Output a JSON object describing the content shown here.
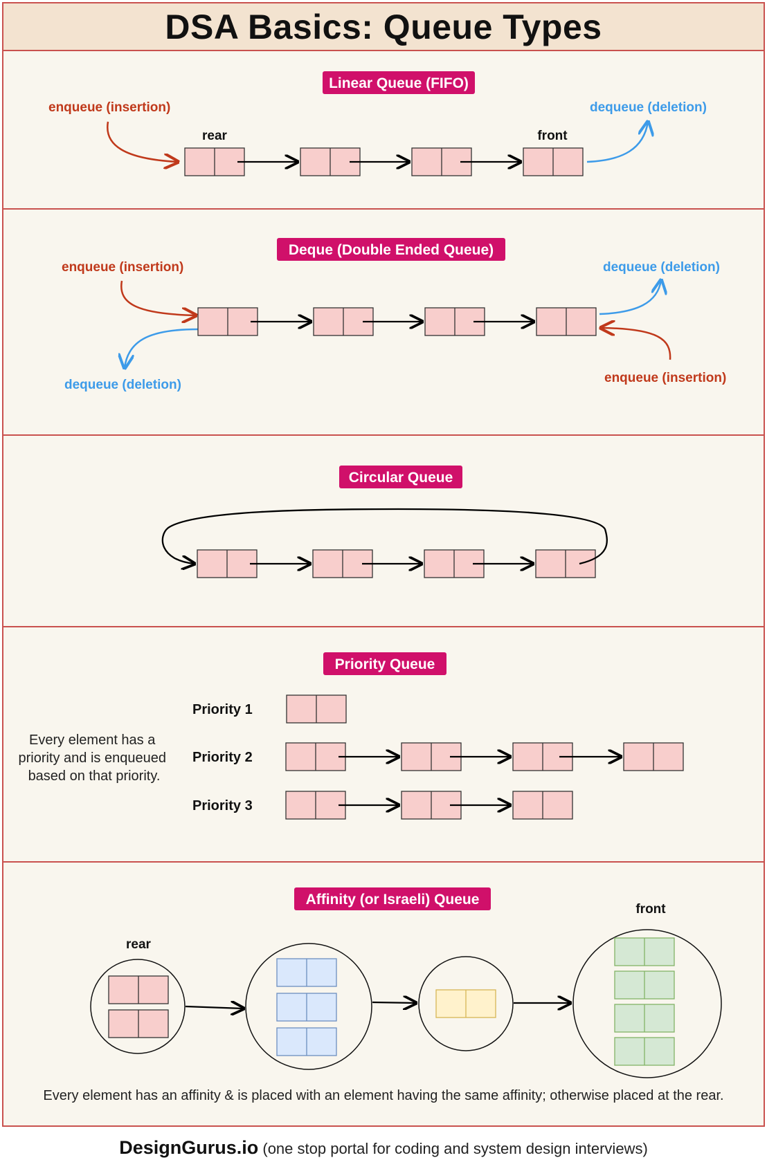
{
  "title": "DSA Basics: Queue Types",
  "colors": {
    "border": "#c9514e",
    "panel": "#f9f6ee",
    "header": "#f3e3d0",
    "badge": "#d0106a",
    "enqueue": "#c0391b",
    "dequeue": "#3d9be9",
    "node_pink": "#f8cecc",
    "node_blue": "#dae8fc",
    "node_yellow": "#fff2cc",
    "node_green": "#d5e8d4"
  },
  "sections": {
    "linear": {
      "title": "Linear Queue (FIFO)",
      "enqueue_label": "enqueue (insertion)",
      "dequeue_label": "dequeue (deletion)",
      "rear_label": "rear",
      "front_label": "front"
    },
    "deque": {
      "title": "Deque (Double Ended Queue)",
      "enqueue_left": "enqueue (insertion)",
      "dequeue_right": "dequeue (deletion)",
      "dequeue_left": "dequeue (deletion)",
      "enqueue_right": "enqueue (insertion)"
    },
    "circular": {
      "title": "Circular Queue"
    },
    "priority": {
      "title": "Priority Queue",
      "description": [
        "Every element has a",
        "priority and is enqueued",
        "based on that priority."
      ],
      "rows": [
        {
          "label": "Priority 1",
          "nodes": 1
        },
        {
          "label": "Priority 2",
          "nodes": 4
        },
        {
          "label": "Priority 3",
          "nodes": 3
        }
      ]
    },
    "affinity": {
      "title": "Affinity (or Israeli) Queue",
      "rear_label": "rear",
      "front_label": "front",
      "description": "Every element has an affinity & is placed with an element having the same affinity; otherwise placed at the rear.",
      "groups": [
        {
          "color": "pink",
          "count": 2
        },
        {
          "color": "blue",
          "count": 3
        },
        {
          "color": "yellow",
          "count": 1
        },
        {
          "color": "green",
          "count": 4
        }
      ]
    }
  },
  "footer": {
    "brand": "DesignGurus.io",
    "tagline": "(one stop portal for coding and system design interviews)"
  }
}
